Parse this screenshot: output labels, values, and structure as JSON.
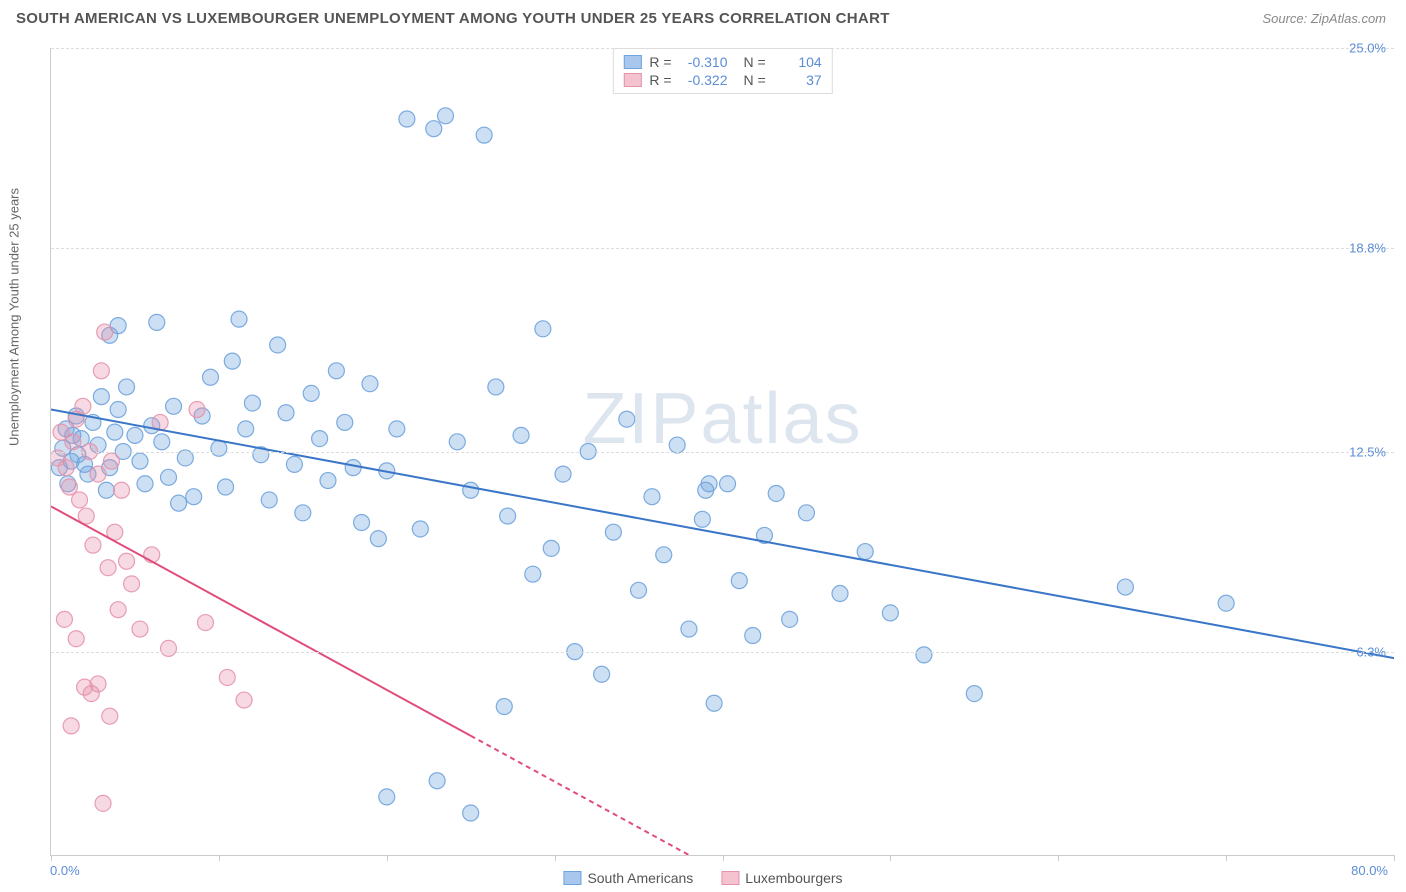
{
  "header": {
    "title": "SOUTH AMERICAN VS LUXEMBOURGER UNEMPLOYMENT AMONG YOUTH UNDER 25 YEARS CORRELATION CHART",
    "source": "Source: ZipAtlas.com"
  },
  "ylabel": "Unemployment Among Youth under 25 years",
  "watermark": {
    "zip": "ZIP",
    "atlas": "atlas"
  },
  "chart": {
    "type": "scatter",
    "background_color": "#ffffff",
    "grid_color": "#dddddd",
    "axis_color": "#cccccc",
    "xlim": [
      0,
      80
    ],
    "ylim": [
      0,
      25
    ],
    "xtick_positions": [
      0,
      10,
      20,
      30,
      40,
      50,
      60,
      70,
      80
    ],
    "yticks": [
      {
        "value": 6.3,
        "label": "6.3%"
      },
      {
        "value": 12.5,
        "label": "12.5%"
      },
      {
        "value": 18.8,
        "label": "18.8%"
      },
      {
        "value": 25.0,
        "label": "25.0%"
      }
    ],
    "xlabels": {
      "min": "0.0%",
      "max": "80.0%"
    },
    "marker_radius": 8,
    "marker_fill_opacity": 0.35,
    "marker_stroke_opacity": 0.9,
    "marker_stroke_width": 1.2,
    "trend_line_width": 2
  },
  "legend_top": {
    "rows": [
      {
        "swatch_fill": "#a9c7ec",
        "swatch_border": "#6fa3dd",
        "r_label": "R =",
        "r_value": "-0.310",
        "n_label": "N =",
        "n_value": "104"
      },
      {
        "swatch_fill": "#f4c3cf",
        "swatch_border": "#e593ab",
        "r_label": "R =",
        "r_value": "-0.322",
        "n_label": "N =",
        "n_value": "37"
      }
    ]
  },
  "legend_bottom": {
    "items": [
      {
        "swatch_fill": "#a9c7ec",
        "swatch_border": "#6fa3dd",
        "label": "South Americans"
      },
      {
        "swatch_fill": "#f4c3cf",
        "swatch_border": "#e593ab",
        "label": "Luxembourgers"
      }
    ]
  },
  "series": [
    {
      "name": "South Americans",
      "color": "#6fa3dd",
      "trend_color": "#3a76c7",
      "trend": {
        "x1": 0,
        "y1": 13.8,
        "x2": 80,
        "y2": 6.1
      },
      "trend_dash_from_x": null,
      "points": [
        [
          0.5,
          12.0
        ],
        [
          0.7,
          12.6
        ],
        [
          0.9,
          13.2
        ],
        [
          1.0,
          11.5
        ],
        [
          1.2,
          12.2
        ],
        [
          1.3,
          13.0
        ],
        [
          1.5,
          13.6
        ],
        [
          1.6,
          12.4
        ],
        [
          1.8,
          12.9
        ],
        [
          2.0,
          12.1
        ],
        [
          2.2,
          11.8
        ],
        [
          2.5,
          13.4
        ],
        [
          2.8,
          12.7
        ],
        [
          3.0,
          14.2
        ],
        [
          3.3,
          11.3
        ],
        [
          3.5,
          12.0
        ],
        [
          3.8,
          13.1
        ],
        [
          4.0,
          13.8
        ],
        [
          4.3,
          12.5
        ],
        [
          4.5,
          14.5
        ],
        [
          3.5,
          16.1
        ],
        [
          4.0,
          16.4
        ],
        [
          5.0,
          13.0
        ],
        [
          5.3,
          12.2
        ],
        [
          5.6,
          11.5
        ],
        [
          6.0,
          13.3
        ],
        [
          6.3,
          16.5
        ],
        [
          6.6,
          12.8
        ],
        [
          7.0,
          11.7
        ],
        [
          7.3,
          13.9
        ],
        [
          7.6,
          10.9
        ],
        [
          8.0,
          12.3
        ],
        [
          8.5,
          11.1
        ],
        [
          9.0,
          13.6
        ],
        [
          9.5,
          14.8
        ],
        [
          10.0,
          12.6
        ],
        [
          10.4,
          11.4
        ],
        [
          10.8,
          15.3
        ],
        [
          11.2,
          16.6
        ],
        [
          11.6,
          13.2
        ],
        [
          12.0,
          14.0
        ],
        [
          12.5,
          12.4
        ],
        [
          13.0,
          11.0
        ],
        [
          13.5,
          15.8
        ],
        [
          14.0,
          13.7
        ],
        [
          14.5,
          12.1
        ],
        [
          15.0,
          10.6
        ],
        [
          15.5,
          14.3
        ],
        [
          16.0,
          12.9
        ],
        [
          16.5,
          11.6
        ],
        [
          17.0,
          15.0
        ],
        [
          17.5,
          13.4
        ],
        [
          18.0,
          12.0
        ],
        [
          18.5,
          10.3
        ],
        [
          19.0,
          14.6
        ],
        [
          19.5,
          9.8
        ],
        [
          20.0,
          11.9
        ],
        [
          20.6,
          13.2
        ],
        [
          21.2,
          22.8
        ],
        [
          22.0,
          10.1
        ],
        [
          22.8,
          22.5
        ],
        [
          23.5,
          22.9
        ],
        [
          24.2,
          12.8
        ],
        [
          25.0,
          11.3
        ],
        [
          25.8,
          22.3
        ],
        [
          26.5,
          14.5
        ],
        [
          27.2,
          10.5
        ],
        [
          28.0,
          13.0
        ],
        [
          28.7,
          8.7
        ],
        [
          29.3,
          16.3
        ],
        [
          29.8,
          9.5
        ],
        [
          30.5,
          11.8
        ],
        [
          31.2,
          6.3
        ],
        [
          32.0,
          12.5
        ],
        [
          32.8,
          5.6
        ],
        [
          33.5,
          10.0
        ],
        [
          34.3,
          13.5
        ],
        [
          35.0,
          8.2
        ],
        [
          35.8,
          11.1
        ],
        [
          36.5,
          9.3
        ],
        [
          37.3,
          12.7
        ],
        [
          38.0,
          7.0
        ],
        [
          38.8,
          10.4
        ],
        [
          39.5,
          4.7
        ],
        [
          40.3,
          11.5
        ],
        [
          41.0,
          8.5
        ],
        [
          41.8,
          6.8
        ],
        [
          42.5,
          9.9
        ],
        [
          43.2,
          11.2
        ],
        [
          44.0,
          7.3
        ],
        [
          39.0,
          11.3
        ],
        [
          39.2,
          11.5
        ],
        [
          45.0,
          10.6
        ],
        [
          47.0,
          8.1
        ],
        [
          48.5,
          9.4
        ],
        [
          50.0,
          7.5
        ],
        [
          52.0,
          6.2
        ],
        [
          55.0,
          5.0
        ],
        [
          64.0,
          8.3
        ],
        [
          70.0,
          7.8
        ],
        [
          20.0,
          1.8
        ],
        [
          23.0,
          2.3
        ],
        [
          25.0,
          1.3
        ],
        [
          27.0,
          4.6
        ]
      ]
    },
    {
      "name": "Luxembourgers",
      "color": "#e593ab",
      "trend_color": "#e04d7a",
      "trend": {
        "x1": 0,
        "y1": 10.8,
        "x2": 38,
        "y2": 0
      },
      "trend_dash_from_x": 25,
      "points": [
        [
          0.4,
          12.3
        ],
        [
          0.6,
          13.1
        ],
        [
          0.9,
          12.0
        ],
        [
          1.1,
          11.4
        ],
        [
          1.3,
          12.8
        ],
        [
          1.5,
          13.5
        ],
        [
          1.7,
          11.0
        ],
        [
          1.9,
          13.9
        ],
        [
          2.1,
          10.5
        ],
        [
          2.3,
          12.5
        ],
        [
          2.5,
          9.6
        ],
        [
          2.8,
          11.8
        ],
        [
          3.0,
          15.0
        ],
        [
          3.2,
          16.2
        ],
        [
          3.4,
          8.9
        ],
        [
          3.6,
          12.2
        ],
        [
          3.8,
          10.0
        ],
        [
          4.0,
          7.6
        ],
        [
          4.2,
          11.3
        ],
        [
          4.5,
          9.1
        ],
        [
          2.0,
          5.2
        ],
        [
          2.4,
          5.0
        ],
        [
          2.8,
          5.3
        ],
        [
          1.2,
          4.0
        ],
        [
          3.5,
          4.3
        ],
        [
          0.8,
          7.3
        ],
        [
          1.5,
          6.7
        ],
        [
          4.8,
          8.4
        ],
        [
          5.3,
          7.0
        ],
        [
          6.0,
          9.3
        ],
        [
          6.5,
          13.4
        ],
        [
          7.0,
          6.4
        ],
        [
          8.7,
          13.8
        ],
        [
          9.2,
          7.2
        ],
        [
          10.5,
          5.5
        ],
        [
          11.5,
          4.8
        ],
        [
          3.1,
          1.6
        ]
      ]
    }
  ]
}
